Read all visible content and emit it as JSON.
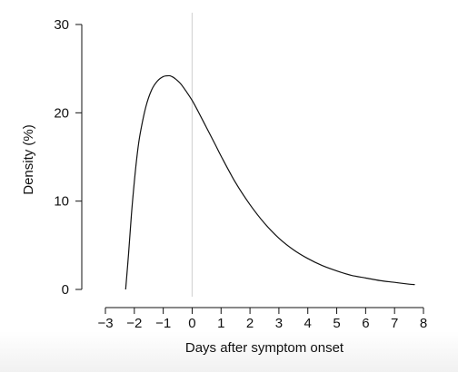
{
  "chart_data": {
    "type": "line",
    "title": "",
    "xlabel": "Days after symptom onset",
    "ylabel": "Density (%)",
    "xlim": [
      -3,
      8
    ],
    "ylim": [
      0,
      30
    ],
    "x_ticks": [
      "−3",
      "−2",
      "−1",
      "0",
      "1",
      "2",
      "3",
      "4",
      "5",
      "6",
      "7",
      "8"
    ],
    "y_ticks": [
      "0",
      "10",
      "20",
      "30"
    ],
    "reference_line_x": 0,
    "grid": false,
    "colors": {
      "curve": "#111111",
      "reference_line": "#d6d6d6",
      "axis": "#111111"
    },
    "series": [
      {
        "x": [
          -2.3,
          -2.2,
          -2.1,
          -2.0,
          -1.9,
          -1.8,
          -1.6,
          -1.4,
          -1.2,
          -1.0,
          -0.8,
          -0.7,
          -0.6,
          -0.4,
          -0.2,
          0.0,
          0.2,
          0.5,
          0.8,
          1.0,
          1.5,
          2.0,
          2.5,
          3.0,
          3.5,
          4.0,
          4.5,
          5.0,
          5.5,
          6.0,
          6.5,
          7.0,
          7.5,
          7.7
        ],
        "y": [
          0.0,
          4.0,
          8.5,
          12.2,
          15.3,
          17.6,
          20.7,
          22.6,
          23.6,
          24.1,
          24.2,
          24.1,
          23.9,
          23.3,
          22.4,
          21.4,
          20.2,
          18.3,
          16.4,
          15.1,
          12.1,
          9.6,
          7.5,
          5.8,
          4.5,
          3.5,
          2.7,
          2.1,
          1.6,
          1.3,
          1.0,
          0.8,
          0.6,
          0.55
        ]
      }
    ]
  }
}
